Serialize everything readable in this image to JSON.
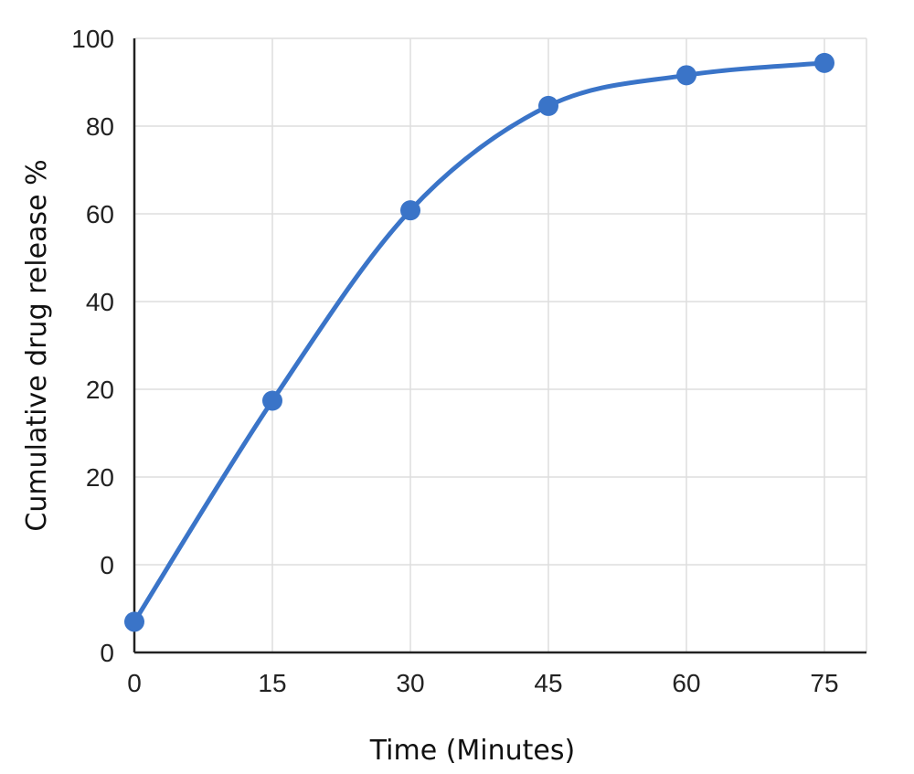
{
  "chart_data": {
    "type": "line",
    "title": "",
    "xlabel": "Time (Minutes)",
    "ylabel": "Cumulative drug release %",
    "x_ticks": [
      "0",
      "15",
      "30",
      "45",
      "60",
      "75"
    ],
    "y_tick_labels": [
      "0",
      "0",
      "20",
      "20",
      "40",
      "60",
      "80",
      "100"
    ],
    "xlim": [
      0,
      75
    ],
    "ylim": [
      0,
      100
    ],
    "grid": true,
    "legend": "none",
    "series": [
      {
        "color": "#3a74c8",
        "x": [
          0,
          15,
          30,
          45,
          60,
          75
        ],
        "y": [
          5,
          41,
          72,
          89,
          94,
          96
        ]
      }
    ]
  }
}
